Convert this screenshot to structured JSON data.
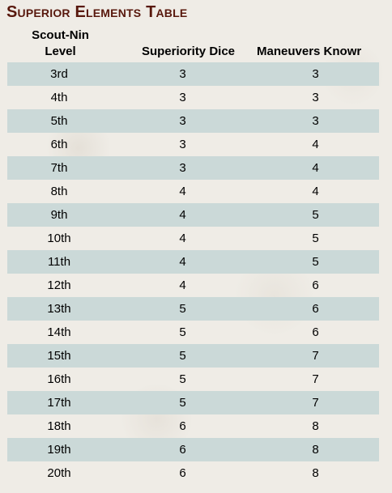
{
  "title": "Superior Elements Table",
  "headers": {
    "level_line1": "Scout-Nin",
    "level_line2": "Level",
    "dice": "Superiority Dice",
    "maneuvers": "Maneuvers Knowr"
  },
  "rows": [
    {
      "level": "3rd",
      "dice": "3",
      "maneuvers": "3"
    },
    {
      "level": "4th",
      "dice": "3",
      "maneuvers": "3"
    },
    {
      "level": "5th",
      "dice": "3",
      "maneuvers": "3"
    },
    {
      "level": "6th",
      "dice": "3",
      "maneuvers": "4"
    },
    {
      "level": "7th",
      "dice": "3",
      "maneuvers": "4"
    },
    {
      "level": "8th",
      "dice": "4",
      "maneuvers": "4"
    },
    {
      "level": "9th",
      "dice": "4",
      "maneuvers": "5"
    },
    {
      "level": "10th",
      "dice": "4",
      "maneuvers": "5"
    },
    {
      "level": "11th",
      "dice": "4",
      "maneuvers": "5"
    },
    {
      "level": "12th",
      "dice": "4",
      "maneuvers": "6"
    },
    {
      "level": "13th",
      "dice": "5",
      "maneuvers": "6"
    },
    {
      "level": "14th",
      "dice": "5",
      "maneuvers": "6"
    },
    {
      "level": "15th",
      "dice": "5",
      "maneuvers": "7"
    },
    {
      "level": "16th",
      "dice": "5",
      "maneuvers": "7"
    },
    {
      "level": "17th",
      "dice": "5",
      "maneuvers": "7"
    },
    {
      "level": "18th",
      "dice": "6",
      "maneuvers": "8"
    },
    {
      "level": "19th",
      "dice": "6",
      "maneuvers": "8"
    },
    {
      "level": "20th",
      "dice": "6",
      "maneuvers": "8"
    }
  ],
  "colors": {
    "title": "#58180d",
    "row_stripe": "#cbd9d8",
    "background": "#efece6"
  }
}
